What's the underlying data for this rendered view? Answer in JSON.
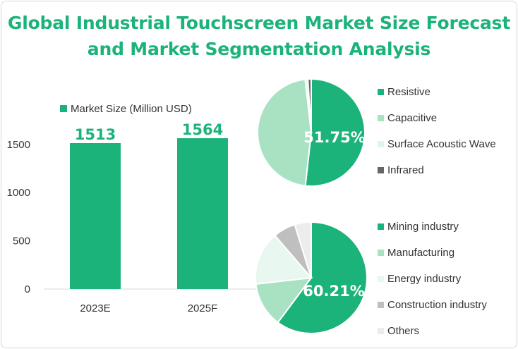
{
  "colors": {
    "brand": "#1bb37a",
    "light_green": "#a8e2c3",
    "pale_green": "#dff5e9",
    "very_pale_green": "#e8f7ef",
    "dark_gray": "#666666",
    "mid_gray": "#bfbfbf",
    "light_gray": "#ececec"
  },
  "chart_data": [
    {
      "type": "bar",
      "title": "Global Industrial Touchscreen Market Size Forecast and Market Segmentation Analysis",
      "categories": [
        "2023E",
        "2025F"
      ],
      "series": [
        {
          "name": "Market Size (Million USD)",
          "values": [
            1513,
            1564
          ]
        }
      ],
      "data_labels": [
        "1513",
        "1564"
      ],
      "yticks": [
        "0",
        "500",
        "1000",
        "1500"
      ],
      "ylim": [
        0,
        1700
      ],
      "legend_position": "top",
      "grid": false
    },
    {
      "type": "pie",
      "labels": [
        "Resistive",
        "Capacitive",
        "Surface Acoustic Wave",
        "Infrared"
      ],
      "values": [
        51.75,
        46.45,
        0.8,
        1.0
      ],
      "data_label": "51.75%",
      "legend_position": "right"
    },
    {
      "type": "pie",
      "labels": [
        "Mining industry",
        "Manufacturing",
        "Energy industry",
        "Construction industry",
        "Others"
      ],
      "values": [
        60.21,
        13.0,
        15.5,
        6.5,
        4.79
      ],
      "data_label": "60.21%",
      "legend_position": "right"
    }
  ]
}
